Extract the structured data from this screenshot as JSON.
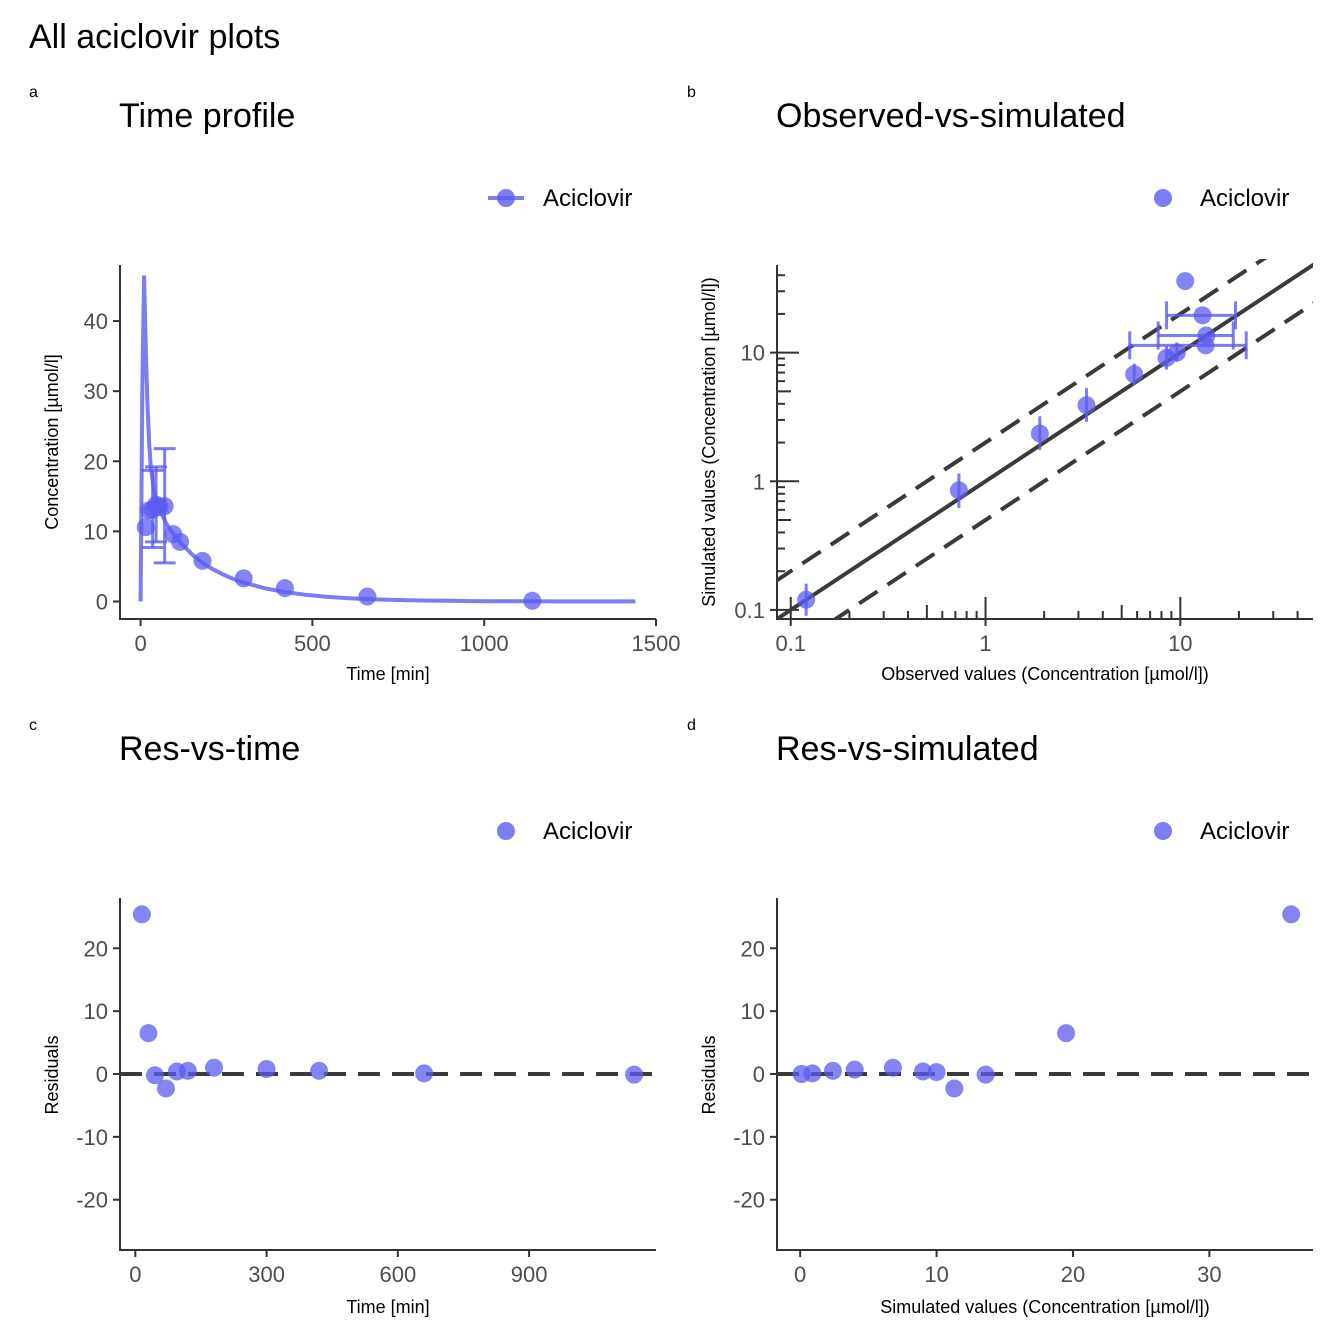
{
  "figure_title": "All aciclovir plots",
  "colors": {
    "series": "#5B5BF0",
    "reference": "#3a3a3a",
    "axis": "#333333",
    "tick_text": "#4d4d4d"
  },
  "chart_data": [
    {
      "id": "a",
      "tag": "a",
      "title": "Time profile",
      "type": "line",
      "xlabel": "Time [min]",
      "ylabel": "Concentration [µmol/l]",
      "xlim": [
        -60,
        1500
      ],
      "ylim": [
        -2.5,
        48
      ],
      "xticks": [
        0,
        500,
        1000,
        1500
      ],
      "yticks": [
        0,
        10,
        20,
        30,
        40
      ],
      "xtick_labels": [
        "0",
        "500",
        "1000",
        "1500"
      ],
      "ytick_labels": [
        "0",
        "10",
        "20",
        "30",
        "40"
      ],
      "legend": {
        "label": "Aciclovir",
        "position": "top-right",
        "key": "line-point"
      },
      "simulated_line": {
        "x": [
          0,
          5,
          10,
          15,
          20,
          25,
          30,
          40,
          50,
          60,
          75,
          90,
          105,
          120,
          150,
          180,
          210,
          240,
          270,
          300,
          360,
          420,
          480,
          540,
          600,
          660,
          720,
          780,
          840,
          900,
          960,
          1020,
          1080,
          1140,
          1200,
          1260,
          1320,
          1380,
          1440
        ],
        "y": [
          0,
          30,
          46.5,
          36,
          28,
          22.5,
          19,
          15.5,
          13.8,
          12.6,
          11.1,
          10.0,
          9.0,
          8.2,
          6.7,
          5.5,
          4.6,
          3.85,
          3.2,
          2.7,
          1.9,
          1.35,
          0.95,
          0.68,
          0.48,
          0.34,
          0.24,
          0.17,
          0.12,
          0.09,
          0.06,
          0.045,
          0.03,
          0.02,
          0.015,
          0.01,
          0.008,
          0.006,
          0.004
        ]
      },
      "observed": {
        "x": [
          15,
          25,
          35,
          45,
          55,
          70,
          95,
          115,
          180,
          300,
          420,
          660,
          1140
        ],
        "y": [
          10.6,
          13.0,
          13.1,
          13.8,
          13.5,
          13.6,
          9.6,
          8.5,
          5.8,
          3.3,
          1.9,
          0.7,
          0.1
        ],
        "error_low": [
          null,
          null,
          7.7,
          8.5,
          null,
          5.5,
          null,
          null,
          null,
          null,
          null,
          null,
          null
        ],
        "error_high": [
          null,
          null,
          18.7,
          19.2,
          null,
          21.8,
          null,
          null,
          null,
          null,
          null,
          null,
          null
        ]
      },
      "grid": false
    },
    {
      "id": "b",
      "tag": "b",
      "title": "Observed-vs-simulated",
      "type": "scatter",
      "xlabel": "Observed values (Concentration [µmol/l])",
      "ylabel": "Simulated values (Concentration [µmol/l])",
      "xscale": "log",
      "yscale": "log",
      "xlim": [
        0.085,
        48
      ],
      "ylim": [
        0.085,
        48
      ],
      "xticks": [
        0.1,
        1,
        10
      ],
      "yticks": [
        0.1,
        1,
        10
      ],
      "xtick_labels": [
        "0.1",
        "1",
        "10"
      ],
      "ytick_labels": [
        "0.1",
        "1",
        "10"
      ],
      "legend": {
        "label": "Aciclovir",
        "position": "top-right",
        "key": "point"
      },
      "identity_line": true,
      "fold_lines": [
        0.5,
        2
      ],
      "observed": {
        "x": [
          0.12,
          0.73,
          1.9,
          3.3,
          5.8,
          8.5,
          9.6,
          10.6,
          13.0,
          13.5,
          13.6
        ],
        "y": [
          0.12,
          0.85,
          2.35,
          3.9,
          6.8,
          9.1,
          10.0,
          36.0,
          19.5,
          11.4,
          13.6
        ],
        "y_error_low": [
          0.09,
          0.62,
          1.75,
          2.9,
          5.6,
          7.4,
          8.5,
          null,
          null,
          null,
          null
        ],
        "y_error_high": [
          0.16,
          1.15,
          3.2,
          5.3,
          8.2,
          11.2,
          12.0,
          46,
          null,
          null,
          null
        ],
        "x_error_low": [
          null,
          null,
          null,
          null,
          null,
          null,
          null,
          null,
          8.5,
          5.5,
          7.7
        ],
        "x_error_high": [
          null,
          null,
          null,
          null,
          null,
          null,
          null,
          null,
          19.2,
          21.8,
          18.7
        ]
      },
      "grid": false
    },
    {
      "id": "c",
      "tag": "c",
      "title": "Res-vs-time",
      "type": "scatter",
      "xlabel": "Time [min]",
      "ylabel": "Residuals",
      "xlim": [
        -35,
        1190
      ],
      "ylim": [
        -28,
        28
      ],
      "xticks": [
        0,
        300,
        600,
        900
      ],
      "yticks": [
        -20,
        -10,
        0,
        10,
        20
      ],
      "xtick_labels": [
        "0",
        "300",
        "600",
        "900"
      ],
      "ytick_labels": [
        "-20",
        "-10",
        "0",
        "10",
        "20"
      ],
      "legend": {
        "label": "Aciclovir",
        "position": "top-right",
        "key": "point"
      },
      "reference_y": 0,
      "observed": {
        "x": [
          15,
          30,
          45,
          70,
          95,
          120,
          180,
          300,
          420,
          660,
          1140
        ],
        "y": [
          25.4,
          6.5,
          -0.2,
          -2.3,
          0.4,
          0.5,
          1.0,
          0.8,
          0.5,
          0.1,
          -0.1
        ]
      },
      "grid": false
    },
    {
      "id": "d",
      "tag": "d",
      "title": "Res-vs-simulated",
      "type": "scatter",
      "xlabel": "Simulated values (Concentration [µmol/l])",
      "ylabel": "Residuals",
      "xlim": [
        -1.7,
        37.6
      ],
      "ylim": [
        -28,
        28
      ],
      "xticks": [
        0,
        10,
        20,
        30
      ],
      "yticks": [
        -20,
        -10,
        0,
        10,
        20
      ],
      "xtick_labels": [
        "0",
        "10",
        "20",
        "30"
      ],
      "ytick_labels": [
        "-20",
        "-10",
        "0",
        "10",
        "20"
      ],
      "legend": {
        "label": "Aciclovir",
        "position": "top-right",
        "key": "point"
      },
      "reference_y": 0,
      "observed": {
        "x": [
          0.1,
          0.9,
          2.4,
          4.0,
          6.8,
          9.0,
          10.0,
          11.3,
          13.6,
          19.5,
          36.0
        ],
        "y": [
          0.0,
          0.1,
          0.5,
          0.7,
          1.0,
          0.4,
          0.3,
          -2.3,
          -0.1,
          6.5,
          25.4
        ]
      },
      "grid": false
    }
  ]
}
